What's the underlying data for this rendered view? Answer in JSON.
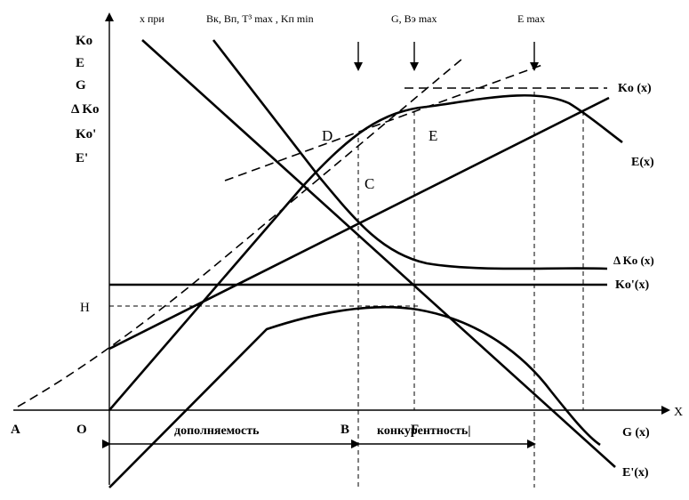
{
  "diagram": {
    "y_axis_labels": [
      "Ko",
      "E",
      "G",
      "Δ Ko",
      "Ko'",
      "E'"
    ],
    "x_axis_label": "X",
    "top_labels": {
      "x_pri": "x при",
      "b_group": "Bк, Bп, T³ max , Kп min",
      "g_group": "G, Bэ max",
      "e_group": "E max"
    },
    "point_labels": {
      "A": "A",
      "O": "O",
      "B": "B",
      "F": "F",
      "H": "H",
      "C": "C",
      "D": "D",
      "E": "E"
    },
    "curve_labels": {
      "ko": "Ko (x)",
      "e": "E(x)",
      "delta_ko": "Δ Ko (x)",
      "ko_prime": "Ko'(x)",
      "g": "G (x)",
      "e_prime": "E'(x)"
    },
    "zones": {
      "left": "дополняемость",
      "right": "конкурентность|"
    }
  }
}
